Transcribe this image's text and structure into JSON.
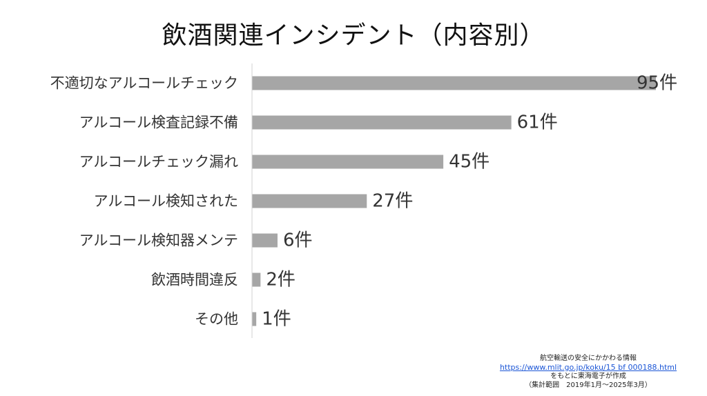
{
  "chart_data": {
    "type": "bar",
    "orientation": "horizontal",
    "title": "飲酒関連インシデント（内容別）",
    "categories": [
      "不適切なアルコールチェック",
      "アルコール検査記録不備",
      "アルコールチェック漏れ",
      "アルコール検知された",
      "アルコール検知器メンテ",
      "飲酒時間違反",
      "その他"
    ],
    "values": [
      95,
      61,
      45,
      27,
      6,
      2,
      1
    ],
    "value_labels": [
      "95件",
      "61件",
      "45件",
      "27件",
      "6件",
      "2件",
      "1件"
    ],
    "xlim": [
      0,
      95
    ],
    "grid": false,
    "legend": "none",
    "bar_color": "#a6a6a6",
    "axis_color": "#d0d0d0"
  },
  "source": {
    "line1": "航空輸送の安全にかかわる情報",
    "url": "https://www.mlit.go.jp/koku/15 bf 000188.html",
    "line3": "をもとに東海電子が作成",
    "line4": "（集計範囲　2019年1月～2025年3月）"
  }
}
